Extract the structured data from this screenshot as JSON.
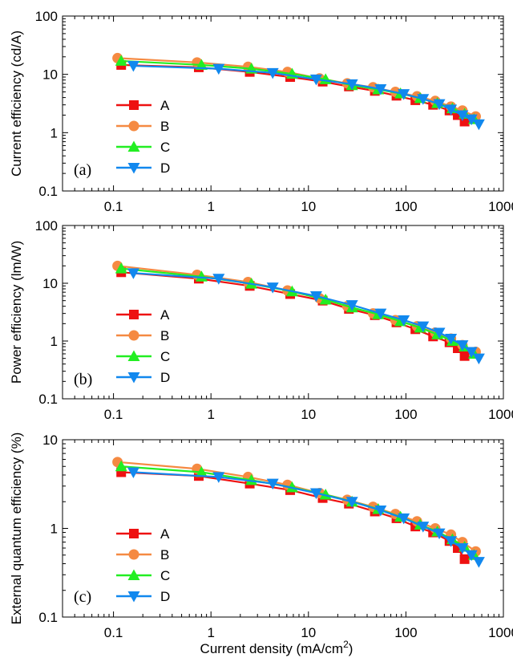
{
  "chart_data": [
    {
      "type": "line",
      "panel_label": "(a)",
      "ylabel": "Current efficiency (cd/A)",
      "xlabel": "",
      "xscale": "log",
      "yscale": "log",
      "xlim": [
        0.03,
        1000
      ],
      "ylim": [
        0.1,
        100
      ],
      "xticks": [
        0.1,
        1,
        10,
        100,
        1000
      ],
      "xtick_labels": [
        "0.1",
        "1",
        "10",
        "100",
        "1000"
      ],
      "yticks": [
        0.1,
        1,
        10,
        100
      ],
      "ytick_labels": [
        "0.1",
        "1",
        "10",
        "100"
      ],
      "legend_position": "lower-left",
      "series": [
        {
          "name": "A",
          "x": [
            0.12,
            0.75,
            2.5,
            6.5,
            14,
            26,
            48,
            80,
            125,
            190,
            280,
            340,
            400
          ],
          "values": [
            14.5,
            13.2,
            11.0,
            9.0,
            7.5,
            6.2,
            5.2,
            4.3,
            3.6,
            3.0,
            2.4,
            2.0,
            1.55
          ]
        },
        {
          "name": "B",
          "x": [
            0.11,
            0.72,
            2.4,
            6.1,
            13,
            25,
            46,
            78,
            130,
            200,
            290,
            380,
            520
          ],
          "values": [
            19.0,
            16.0,
            13.5,
            11.0,
            8.5,
            7.0,
            6.0,
            5.0,
            4.2,
            3.5,
            2.8,
            2.4,
            1.9
          ]
        },
        {
          "name": "C",
          "x": [
            0.12,
            0.8,
            2.6,
            6.8,
            15,
            28,
            52,
            88,
            140,
            210,
            300,
            400,
            500
          ],
          "values": [
            17.0,
            14.5,
            12.5,
            10.2,
            8.2,
            6.5,
            5.5,
            4.7,
            3.9,
            3.2,
            2.6,
            2.1,
            1.7
          ]
        },
        {
          "name": "D",
          "x": [
            0.16,
            1.2,
            4.3,
            12,
            28,
            55,
            95,
            150,
            220,
            290,
            380,
            470,
            560
          ],
          "values": [
            14.0,
            12.5,
            10.6,
            8.2,
            6.8,
            5.6,
            4.6,
            3.8,
            3.1,
            2.5,
            2.0,
            1.7,
            1.4
          ]
        }
      ]
    },
    {
      "type": "line",
      "panel_label": "(b)",
      "ylabel": "Power efficiency (lm/W)",
      "xlabel": "",
      "xscale": "log",
      "yscale": "log",
      "xlim": [
        0.03,
        1000
      ],
      "ylim": [
        0.1,
        100
      ],
      "xticks": [
        0.1,
        1,
        10,
        100,
        1000
      ],
      "xtick_labels": [
        "0.1",
        "1",
        "10",
        "100",
        "1000"
      ],
      "yticks": [
        0.1,
        1,
        10,
        100
      ],
      "ytick_labels": [
        "0.1",
        "1",
        "10",
        "100"
      ],
      "legend_position": "lower-left",
      "series": [
        {
          "name": "A",
          "x": [
            0.12,
            0.75,
            2.5,
            6.5,
            14,
            26,
            48,
            80,
            125,
            190,
            280,
            340,
            400
          ],
          "values": [
            15.5,
            12.0,
            9.0,
            6.5,
            5.0,
            3.6,
            2.8,
            2.1,
            1.6,
            1.2,
            0.95,
            0.75,
            0.55
          ]
        },
        {
          "name": "B",
          "x": [
            0.11,
            0.72,
            2.4,
            6.1,
            13,
            25,
            46,
            78,
            130,
            200,
            290,
            380,
            520
          ],
          "values": [
            20.0,
            14.0,
            10.5,
            7.5,
            5.5,
            4.0,
            3.0,
            2.3,
            1.8,
            1.4,
            1.1,
            0.85,
            0.65
          ]
        },
        {
          "name": "C",
          "x": [
            0.12,
            0.8,
            2.6,
            6.8,
            15,
            28,
            52,
            88,
            140,
            210,
            300,
            400,
            500
          ],
          "values": [
            18.0,
            13.0,
            9.8,
            7.2,
            5.2,
            3.8,
            2.9,
            2.2,
            1.7,
            1.3,
            1.0,
            0.8,
            0.6
          ]
        },
        {
          "name": "D",
          "x": [
            0.16,
            1.2,
            4.3,
            12,
            28,
            55,
            95,
            150,
            220,
            290,
            380,
            470,
            560
          ],
          "values": [
            15.0,
            12.0,
            8.5,
            6.0,
            4.2,
            3.0,
            2.3,
            1.8,
            1.4,
            1.1,
            0.85,
            0.65,
            0.5
          ]
        }
      ]
    },
    {
      "type": "line",
      "panel_label": "(c)",
      "ylabel": "External quantum efficiency (%)",
      "xlabel": "Current density (mA/cm2)",
      "xscale": "log",
      "yscale": "log",
      "xlim": [
        0.03,
        1000
      ],
      "ylim": [
        0.1,
        10
      ],
      "xticks": [
        0.1,
        1,
        10,
        100,
        1000
      ],
      "xtick_labels": [
        "0.1",
        "1",
        "10",
        "100",
        "1000"
      ],
      "yticks": [
        0.1,
        1,
        10
      ],
      "ytick_labels": [
        "0.1",
        "1",
        "10"
      ],
      "legend_position": "lower-left",
      "series": [
        {
          "name": "A",
          "x": [
            0.12,
            0.75,
            2.5,
            6.5,
            14,
            26,
            48,
            80,
            125,
            190,
            280,
            340,
            400
          ],
          "values": [
            4.3,
            3.9,
            3.2,
            2.7,
            2.2,
            1.9,
            1.55,
            1.3,
            1.05,
            0.9,
            0.72,
            0.6,
            0.45
          ]
        },
        {
          "name": "B",
          "x": [
            0.11,
            0.72,
            2.4,
            6.1,
            13,
            25,
            46,
            78,
            130,
            200,
            290,
            380,
            520
          ],
          "values": [
            5.6,
            4.7,
            3.8,
            3.1,
            2.5,
            2.1,
            1.75,
            1.45,
            1.2,
            1.0,
            0.85,
            0.7,
            0.55
          ]
        },
        {
          "name": "C",
          "x": [
            0.12,
            0.8,
            2.6,
            6.8,
            15,
            28,
            52,
            88,
            140,
            210,
            300,
            400,
            500
          ],
          "values": [
            5.0,
            4.3,
            3.5,
            2.9,
            2.4,
            2.0,
            1.65,
            1.35,
            1.1,
            0.92,
            0.75,
            0.62,
            0.5
          ]
        },
        {
          "name": "D",
          "x": [
            0.16,
            1.2,
            4.3,
            12,
            28,
            55,
            95,
            150,
            220,
            290,
            380,
            470,
            560
          ],
          "values": [
            4.3,
            3.8,
            3.2,
            2.5,
            2.0,
            1.6,
            1.3,
            1.05,
            0.88,
            0.72,
            0.6,
            0.5,
            0.42
          ]
        }
      ]
    }
  ],
  "series_styles": [
    {
      "name": "A",
      "color": "#ee1111",
      "marker": "square"
    },
    {
      "name": "B",
      "color": "#f58a42",
      "marker": "circle"
    },
    {
      "name": "C",
      "color": "#22ee22",
      "marker": "triangle-up"
    },
    {
      "name": "D",
      "color": "#1188ee",
      "marker": "triangle-down"
    }
  ],
  "xlabel_parts": {
    "main": "Current density (mA/cm",
    "sup": "2",
    "end": ")"
  }
}
